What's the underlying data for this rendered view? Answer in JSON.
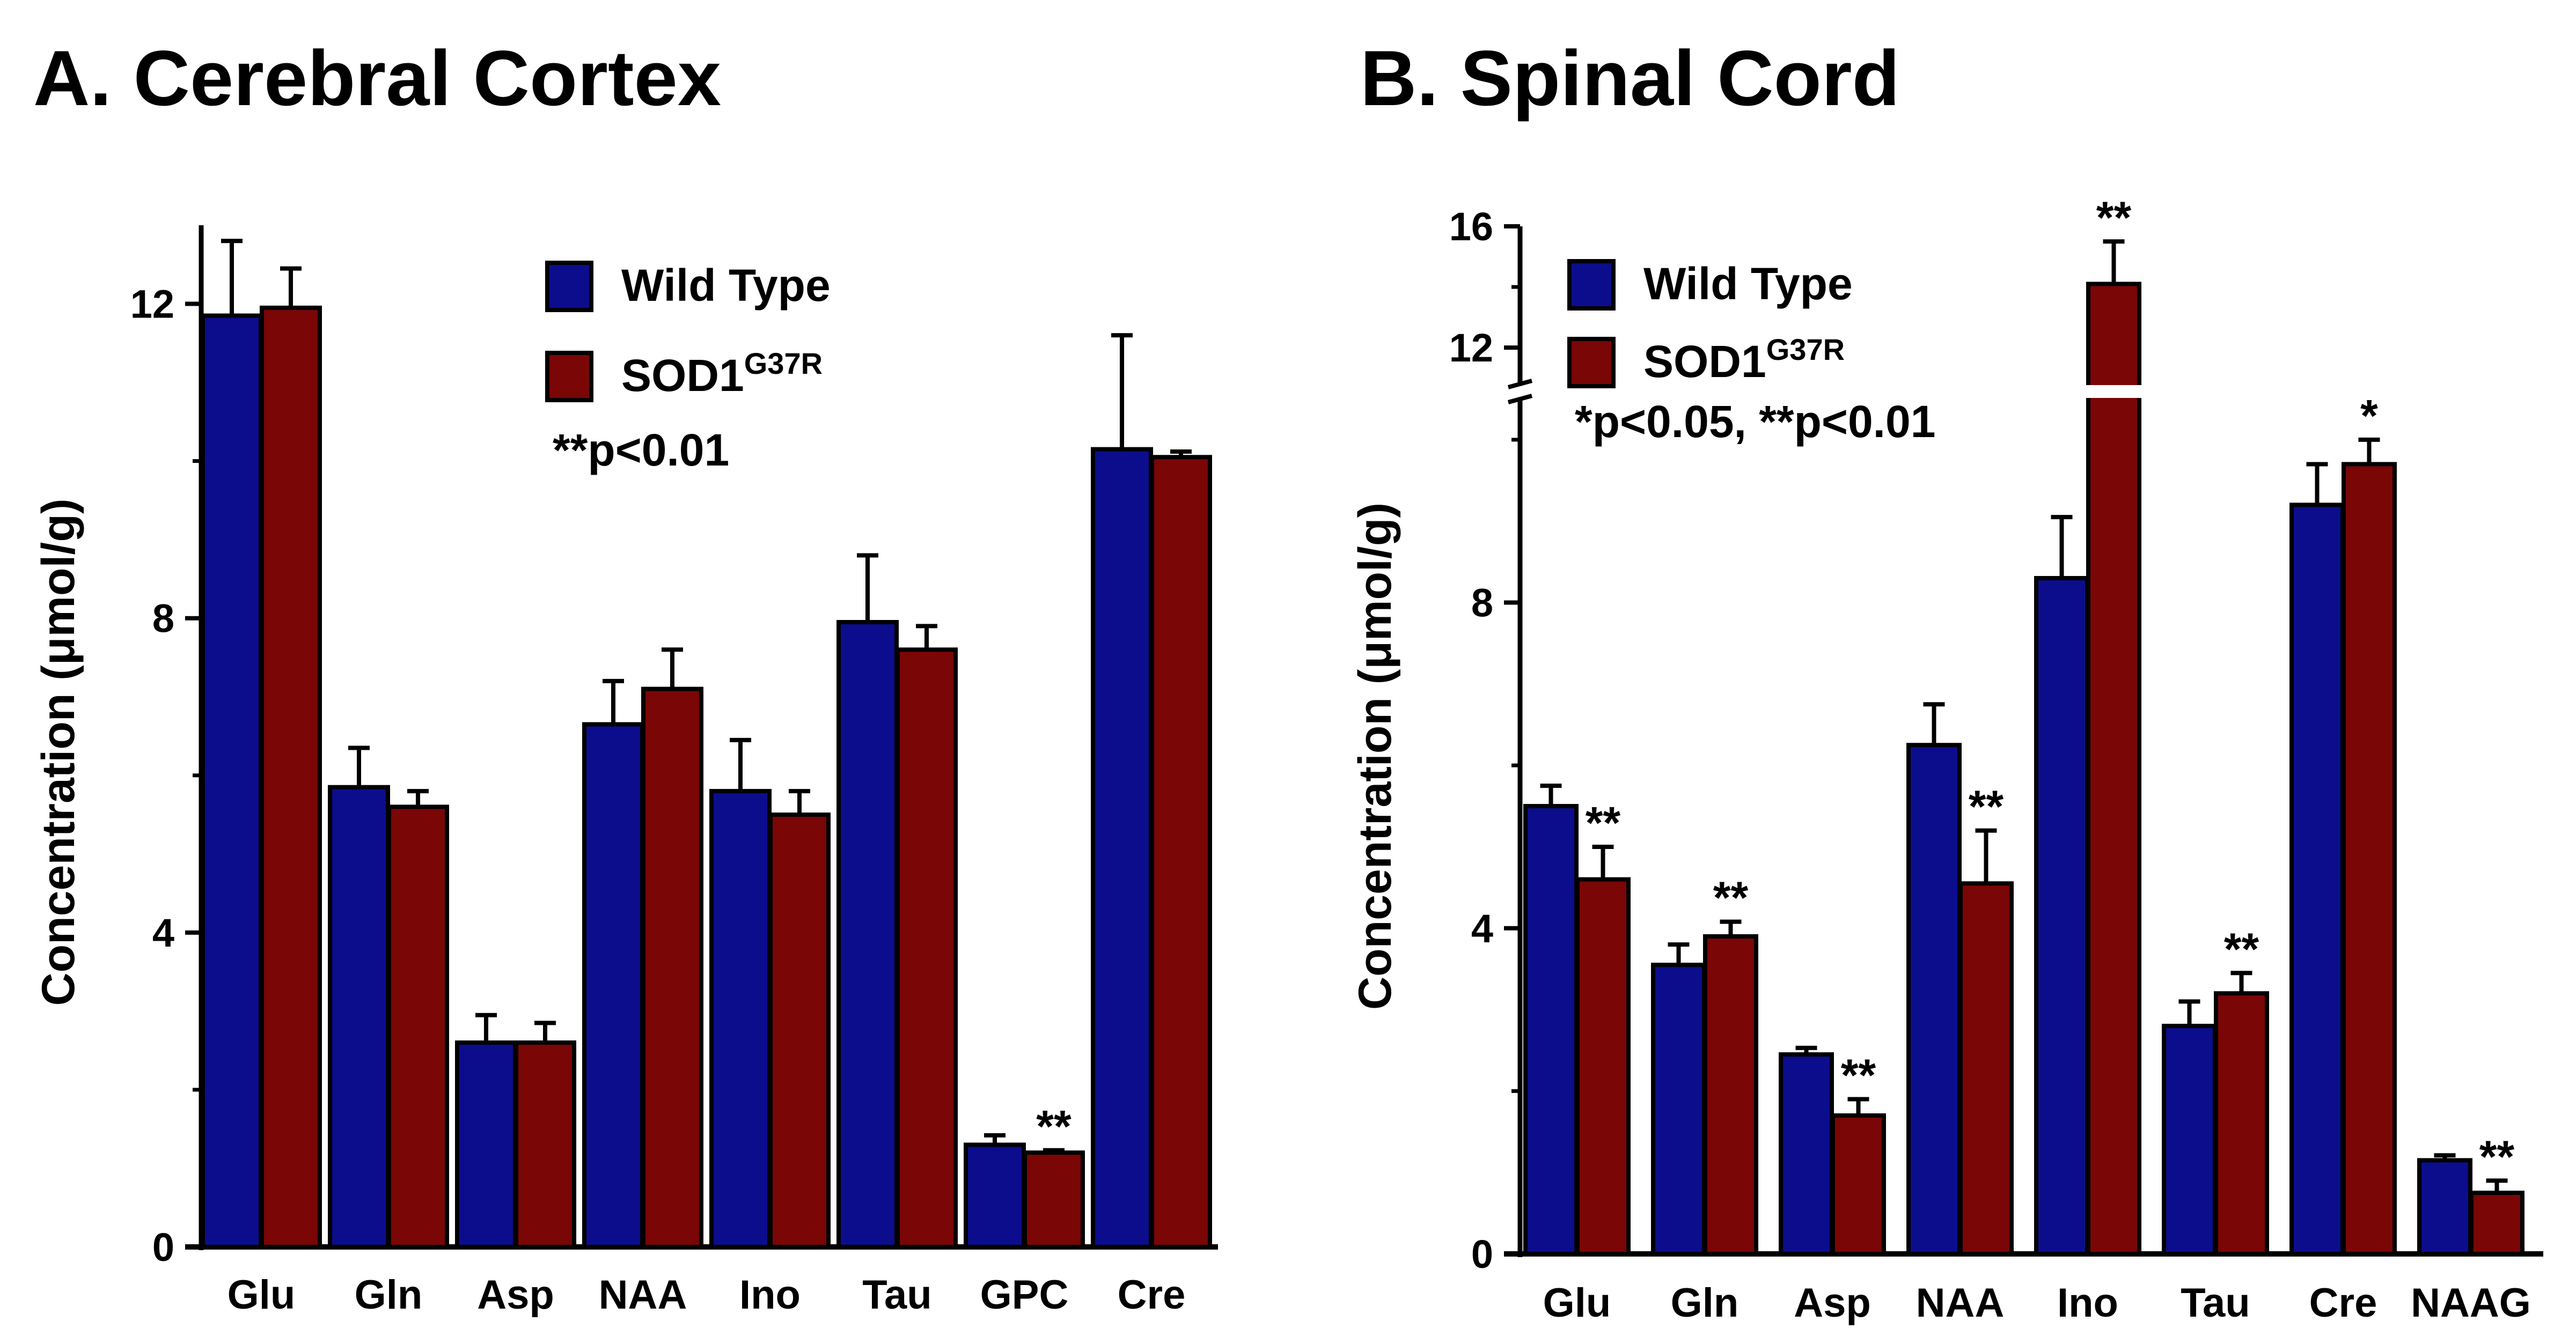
{
  "colors": {
    "wild_type": "#0b0d8c",
    "sod1": "#7a0606",
    "axis": "#000000"
  },
  "chart_data": [
    {
      "type": "bar",
      "title": "A. Cerebral Cortex",
      "ylabel": "Concentration (μmol/g)",
      "xlabel": "",
      "ylim": [
        0,
        13
      ],
      "yticks": [
        0,
        4,
        8,
        12
      ],
      "categories": [
        "Glu",
        "Gln",
        "Asp",
        "NAA",
        "Ino",
        "Tau",
        "GPC",
        "Cre"
      ],
      "series": [
        {
          "name": "Wild Type",
          "values": [
            11.85,
            5.85,
            2.6,
            6.65,
            5.8,
            7.95,
            1.3,
            10.15
          ],
          "errors": [
            0.95,
            0.5,
            0.35,
            0.55,
            0.65,
            0.85,
            0.12,
            1.45
          ]
        },
        {
          "name": "SOD1",
          "name_sup": "G37R",
          "values": [
            11.95,
            5.6,
            2.6,
            7.1,
            5.5,
            7.6,
            1.2,
            10.05
          ],
          "errors": [
            0.5,
            0.2,
            0.25,
            0.5,
            0.3,
            0.3,
            0.03,
            0.07
          ]
        }
      ],
      "significance": [
        {
          "category": "GPC",
          "series": "SOD1",
          "label": "**"
        }
      ],
      "legend": {
        "position": "top-center",
        "items": [
          "Wild Type",
          "SOD1"
        ]
      },
      "annotation": "**p<0.01"
    },
    {
      "type": "bar",
      "title": "B. Spinal Cord",
      "ylabel": "Concentration (μmol/g)",
      "xlabel": "",
      "ylim": [
        0,
        16
      ],
      "axis_break": [
        10.5,
        10.8
      ],
      "yticks": [
        0,
        4,
        8,
        12,
        16
      ],
      "categories": [
        "Glu",
        "Gln",
        "Asp",
        "NAA",
        "Ino",
        "Tau",
        "Cre",
        "NAAG"
      ],
      "series": [
        {
          "name": "Wild Type",
          "values": [
            5.5,
            3.55,
            2.45,
            6.25,
            8.3,
            2.8,
            9.2,
            1.15
          ],
          "errors": [
            0.25,
            0.25,
            0.08,
            0.5,
            0.75,
            0.3,
            0.5,
            0.06
          ]
        },
        {
          "name": "SOD1",
          "name_sup": "G37R",
          "values": [
            4.6,
            3.9,
            1.7,
            4.55,
            14.1,
            3.2,
            9.7,
            0.75
          ],
          "errors": [
            0.4,
            0.18,
            0.2,
            0.65,
            1.4,
            0.25,
            0.3,
            0.15
          ]
        }
      ],
      "significance": [
        {
          "category": "Glu",
          "series": "SOD1",
          "label": "**"
        },
        {
          "category": "Gln",
          "series": "SOD1",
          "label": "**"
        },
        {
          "category": "Asp",
          "series": "SOD1",
          "label": "**"
        },
        {
          "category": "NAA",
          "series": "SOD1",
          "label": "**"
        },
        {
          "category": "Ino",
          "series": "SOD1",
          "label": "**"
        },
        {
          "category": "Tau",
          "series": "SOD1",
          "label": "**"
        },
        {
          "category": "Cre",
          "series": "SOD1",
          "label": "*"
        },
        {
          "category": "NAAG",
          "series": "SOD1",
          "label": "**"
        }
      ],
      "legend": {
        "position": "top-left",
        "items": [
          "Wild Type",
          "SOD1"
        ]
      },
      "annotation": "*p<0.05, **p<0.01"
    }
  ]
}
